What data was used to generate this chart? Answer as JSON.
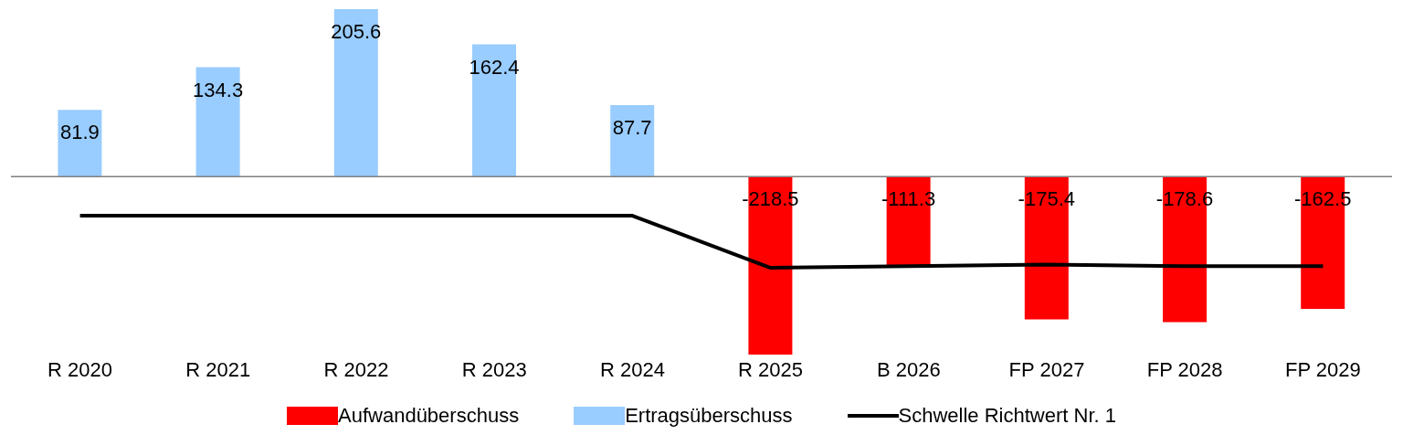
{
  "chart_data": {
    "type": "bar",
    "categories": [
      "R 2020",
      "R 2021",
      "R 2022",
      "R 2023",
      "R 2024",
      "R 2025",
      "B 2026",
      "FP 2027",
      "FP 2028",
      "FP 2029"
    ],
    "stacked": true,
    "legend": "bottom",
    "grid": false,
    "series": [
      {
        "name": "Aufwandüberschuss",
        "color": "#ff0000",
        "values": [
          null,
          null,
          null,
          null,
          null,
          -218.5,
          -111.3,
          -175.4,
          -178.6,
          -162.5
        ],
        "value_labels": [
          null,
          null,
          null,
          null,
          null,
          "-218.5",
          "-111.3",
          "-175.4",
          "-178.6",
          "-162.5"
        ]
      },
      {
        "name": "Ertragsüberschuss",
        "color": "#99ccff",
        "values": [
          81.9,
          134.3,
          205.6,
          162.4,
          87.7,
          null,
          null,
          null,
          null,
          null
        ],
        "value_labels": [
          "81.9",
          "134.3",
          "205.6",
          "162.4",
          "87.7",
          null,
          null,
          null,
          null,
          null
        ]
      },
      {
        "name": "Schwelle Richtwert Nr. 1",
        "type": "line",
        "color": "#000000",
        "marker": "none",
        "line_style": "solid",
        "values": [
          -48,
          -48,
          -48,
          -48,
          -48,
          -112,
          -110,
          -108,
          -110,
          -110
        ]
      }
    ]
  }
}
